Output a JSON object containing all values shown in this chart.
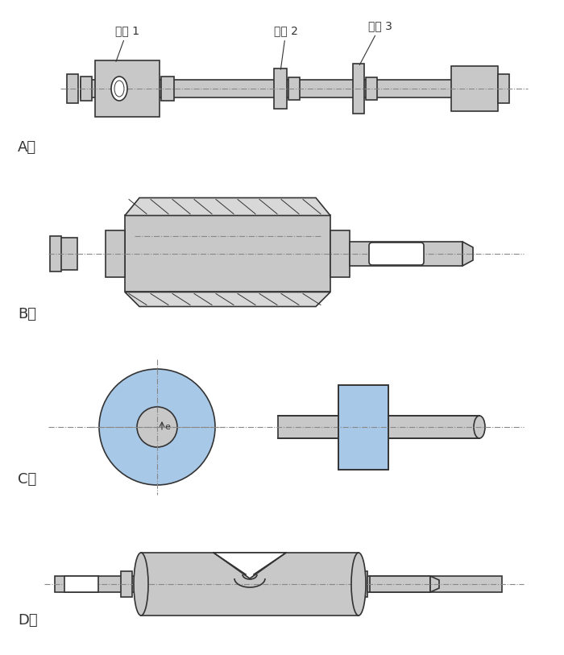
{
  "bg_color": "#ffffff",
  "gray_fill": "#c8c8c8",
  "gray_light": "#d8d8d8",
  "gray_dark": "#a0a0a0",
  "blue_fill": "#a8c8e8",
  "line_color": "#333333",
  "centerline_color": "#888888",
  "label_A": "A、",
  "label_B": "B、",
  "label_C": "C、",
  "label_D": "D、",
  "cam1": "凸轮 1",
  "cam2": "凸轮 2",
  "cam3": "凸轮 3"
}
